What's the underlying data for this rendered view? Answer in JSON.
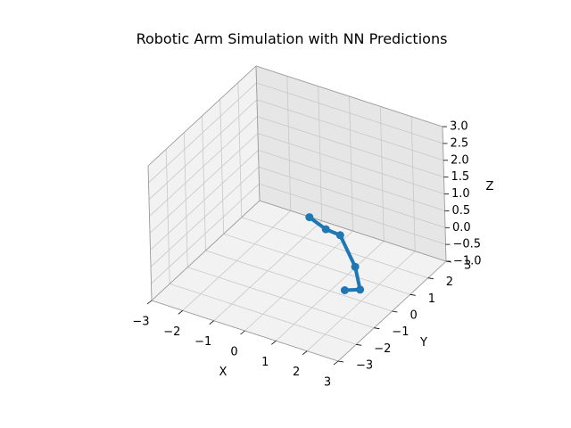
{
  "chart_data": {
    "type": "line3d",
    "title": "Robotic Arm Simulation with NN Predictions",
    "xlabel": "X",
    "ylabel": "Y",
    "zlabel": "Z",
    "xlim": [
      -3,
      3
    ],
    "ylim": [
      -3,
      3
    ],
    "zlim": [
      -1,
      3
    ],
    "x_ticks": [
      "−3",
      "−2",
      "−1",
      "0",
      "1",
      "2",
      "3"
    ],
    "y_ticks": [
      "−3",
      "−2",
      "−1",
      "0",
      "1",
      "2",
      "3"
    ],
    "z_ticks": [
      "−1.0",
      "−0.5",
      "0.0",
      "0.5",
      "1.0",
      "1.5",
      "2.0",
      "2.5",
      "3.0"
    ],
    "grid": true,
    "series": [
      {
        "name": "",
        "color": "#1f77b4",
        "marker": "circle",
        "points": [
          {
            "x": -0.5,
            "y": 1.5,
            "z": 0.0
          },
          {
            "x": 0.2,
            "y": 1.2,
            "z": 0.0
          },
          {
            "x": 1.05,
            "y": 0.55,
            "z": 0.4
          },
          {
            "x": 1.6,
            "y": 0.4,
            "z": -0.3
          },
          {
            "x": 1.95,
            "y": 0.05,
            "z": -0.7
          },
          {
            "x": 1.6,
            "y": -0.2,
            "z": -0.7
          }
        ]
      }
    ]
  }
}
